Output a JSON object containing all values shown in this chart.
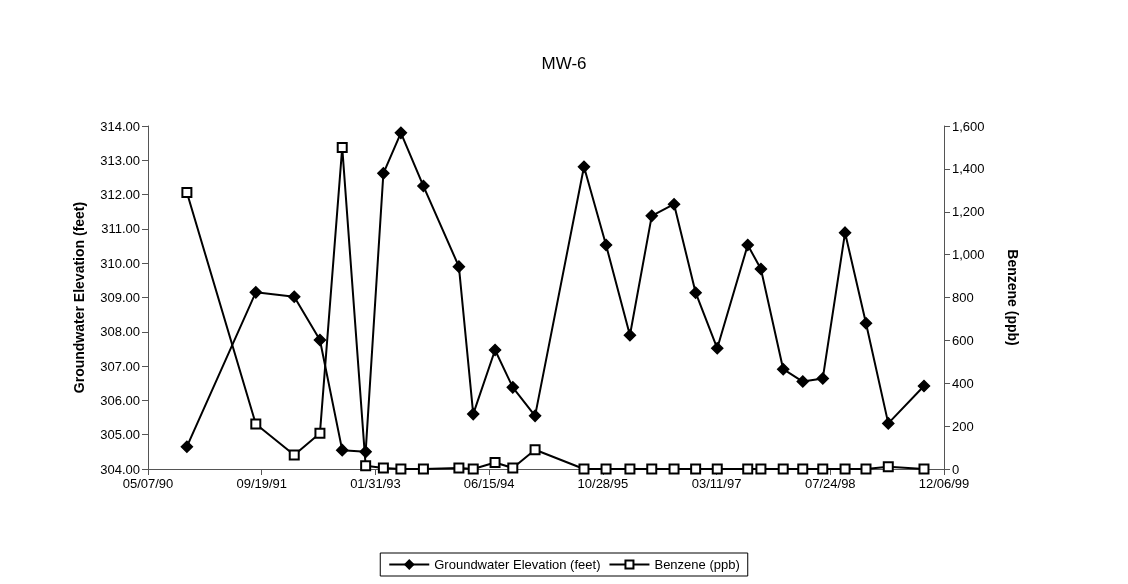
{
  "chart_data": {
    "type": "line",
    "title": "MW-6",
    "ylabel": "Groundwater Elevation (feet)",
    "y2label": "Benzene (ppb)",
    "x": [
      "1990-10-25",
      "1991-08-24",
      "1992-02-09",
      "1992-06-01",
      "1992-09-07",
      "1992-12-19",
      "1993-03-07",
      "1993-05-23",
      "1993-08-30",
      "1994-02-02",
      "1994-04-06",
      "1994-07-11",
      "1994-09-27",
      "1995-01-03",
      "1995-08-06",
      "1995-11-11",
      "1996-02-24",
      "1996-05-30",
      "1996-09-05",
      "1996-12-09",
      "1997-03-14",
      "1997-07-26",
      "1997-09-22",
      "1997-12-29",
      "1998-03-25",
      "1998-06-21",
      "1998-09-27",
      "1998-12-28",
      "1999-04-05",
      "1999-09-09"
    ],
    "series": [
      {
        "name": "Groundwater Elevation (feet)",
        "color": "#000000",
        "marker": "diamond",
        "values": [
          304.65,
          309.15,
          309.02,
          307.76,
          304.55,
          304.5,
          312.62,
          313.8,
          312.25,
          309.9,
          305.6,
          307.47,
          306.38,
          305.55,
          312.81,
          310.53,
          307.9,
          311.38,
          311.72,
          309.14,
          307.52,
          310.53,
          309.83,
          306.91,
          306.55,
          306.64,
          310.89,
          308.25,
          305.33,
          306.42
        ]
      },
      {
        "name": "Benzene (ppb)",
        "color": "#000000",
        "marker": "square",
        "axis": "y2",
        "values": [
          1290,
          210,
          65,
          167,
          1500,
          15,
          5,
          0,
          0,
          5,
          0,
          30,
          5,
          90,
          0,
          0,
          0,
          0,
          0,
          0,
          0,
          0,
          0,
          0,
          0,
          0,
          0,
          0,
          10,
          0
        ]
      }
    ],
    "xlim": [
      "1990-05-07",
      "1999-12-06"
    ],
    "xticks": [
      {
        "value": "1990-05-07",
        "label": "05/07/90"
      },
      {
        "value": "1991-09-19",
        "label": "09/19/91"
      },
      {
        "value": "1993-01-31",
        "label": "01/31/93"
      },
      {
        "value": "1994-06-15",
        "label": "06/15/94"
      },
      {
        "value": "1995-10-28",
        "label": "10/28/95"
      },
      {
        "value": "1997-03-11",
        "label": "03/11/97"
      },
      {
        "value": "1998-07-24",
        "label": "07/24/98"
      },
      {
        "value": "1999-12-06",
        "label": "12/06/99"
      }
    ],
    "ylim": [
      304,
      314
    ],
    "yticks": [
      {
        "value": 304,
        "label": "304.00"
      },
      {
        "value": 305,
        "label": "305.00"
      },
      {
        "value": 306,
        "label": "306.00"
      },
      {
        "value": 307,
        "label": "307.00"
      },
      {
        "value": 308,
        "label": "308.00"
      },
      {
        "value": 309,
        "label": "309.00"
      },
      {
        "value": 310,
        "label": "310.00"
      },
      {
        "value": 311,
        "label": "311.00"
      },
      {
        "value": 312,
        "label": "312.00"
      },
      {
        "value": 313,
        "label": "313.00"
      },
      {
        "value": 314,
        "label": "314.00"
      }
    ],
    "y2lim": [
      0,
      1600
    ],
    "y2ticks": [
      0,
      200,
      400,
      600,
      800,
      {
        "value": 1000,
        "label": "1,000"
      },
      {
        "value": 1200,
        "label": "1,200"
      },
      {
        "value": 1400,
        "label": "1,400"
      },
      {
        "value": 1600,
        "label": "1,600"
      }
    ],
    "grid": false,
    "legend": "bottom",
    "line_style": "solid"
  }
}
